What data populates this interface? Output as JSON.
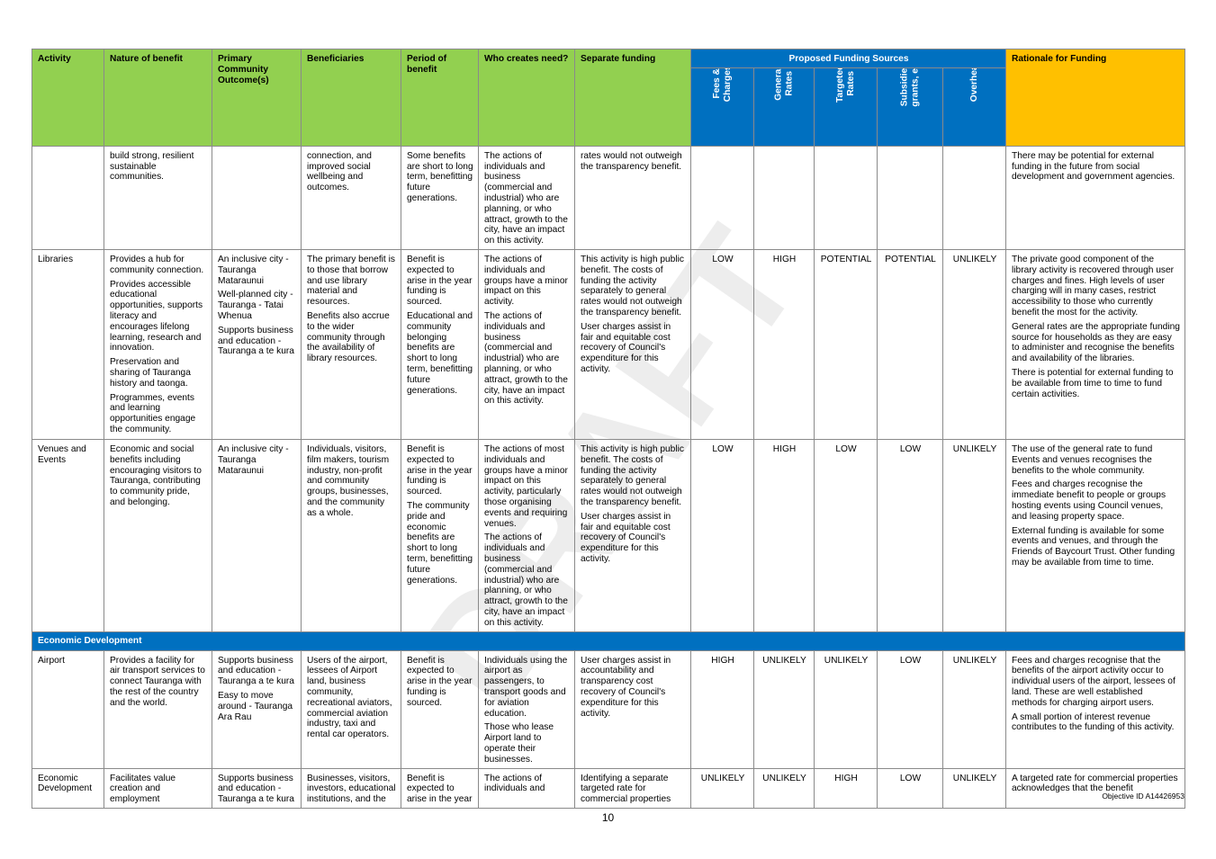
{
  "header": {
    "activity": "Activity",
    "nature": "Nature of benefit",
    "outcome": "Primary Community Outcome(s)",
    "beneficiaries": "Beneficiaries",
    "period": "Period of benefit",
    "who": "Who creates need?",
    "separate": "Separate funding",
    "proposed": "Proposed Funding Sources",
    "rationale": "Rationale for Funding",
    "sources": [
      "Fees &\nCharges",
      "General\nRates",
      "Targeted\nRates",
      "Subsidies,\ngrants, etc",
      "Overheads"
    ]
  },
  "rows": [
    {
      "activity": "",
      "nature": [
        "build strong, resilient sustainable communities."
      ],
      "outcome": [],
      "beneficiaries": [
        "connection, and improved social wellbeing and outcomes."
      ],
      "period": [
        "Some benefits are short to long term, benefitting future generations."
      ],
      "who": [
        "The actions of individuals and business (commercial and industrial) who are planning, or who attract, growth to the city, have an impact on this activity."
      ],
      "separate": [
        "rates would not outweigh the transparency benefit."
      ],
      "levels": [
        "",
        "",
        "",
        "",
        ""
      ],
      "rationale": [
        "There may be potential for external funding in the future from social development and government agencies."
      ]
    },
    {
      "activity": "Libraries",
      "nature": [
        "Provides a hub for community connection.",
        "Provides accessible educational opportunities, supports literacy and encourages lifelong learning, research and innovation.",
        "Preservation and sharing of Tauranga history and taonga.",
        "Programmes, events and learning opportunities engage the community."
      ],
      "outcome": [
        "An inclusive city - Tauranga Mataraunui",
        "Well-planned city - Tauranga - Tatai Whenua",
        "Supports business and education - Tauranga a te kura"
      ],
      "beneficiaries": [
        "The primary benefit is to those that borrow and use library material and resources.",
        "Benefits also accrue to the wider community through the availability of library resources."
      ],
      "period": [
        "Benefit is expected to arise in the year funding is sourced.",
        "Educational and community belonging benefits are short to long term, benefitting future generations."
      ],
      "who": [
        "The actions of individuals and groups have a minor impact on this activity.",
        "The actions of individuals and business (commercial and industrial) who are planning, or who attract, growth to the city, have an impact on this activity."
      ],
      "separate": [
        "This activity is high public benefit. The costs of funding the activity separately to general rates would not outweigh the transparency benefit.",
        "User charges assist in fair and equitable cost recovery of Council's expenditure for this activity."
      ],
      "levels": [
        "LOW",
        "HIGH",
        "POTENTIAL",
        "POTENTIAL",
        "UNLIKELY"
      ],
      "rationale": [
        "The private good component of the library activity is recovered through user charges and fines. High levels of user charging will in many cases, restrict accessibility to those who currently benefit the most for the activity.",
        "General rates are the appropriate funding source for households as they are easy to administer and recognise the benefits and availability of the libraries.",
        "There is potential for external funding to be available from time to time to fund certain activities."
      ]
    },
    {
      "activity": "Venues and Events",
      "nature": [
        "Economic and social benefits including encouraging visitors to Tauranga, contributing to community pride, and belonging."
      ],
      "outcome": [
        "An inclusive city - Tauranga Mataraunui"
      ],
      "beneficiaries": [
        "Individuals, visitors, film makers, tourism industry, non-profit and community groups, businesses, and the community as a whole."
      ],
      "period": [
        "Benefit is expected to arise in the year funding is sourced.",
        "The community pride and economic benefits are short to long term, benefitting future generations."
      ],
      "who": [
        "The actions of most individuals and groups have a minor impact on this activity, particularly those organising events and requiring venues.",
        "The actions of individuals and business (commercial and industrial) who are planning, or who attract, growth to the city, have an impact on this activity."
      ],
      "separate": [
        "This activity is high public benefit. The costs of funding the activity separately to general rates would not outweigh the transparency benefit.",
        "User charges assist in fair and equitable cost recovery of Council's expenditure for this activity."
      ],
      "levels": [
        "LOW",
        "HIGH",
        "LOW",
        "LOW",
        "UNLIKELY"
      ],
      "rationale": [
        "The use of the general rate to fund Events and venues recognises the benefits to the whole community.",
        "Fees and charges recognise the immediate benefit to people or groups hosting events using Council venues, and leasing property space.",
        "External funding is available for some events and venues, and through the Friends of Baycourt Trust. Other funding may be available from time to time."
      ]
    }
  ],
  "section": "Economic Development",
  "rows2": [
    {
      "activity": "Airport",
      "nature": [
        "Provides a facility for air transport services to connect Tauranga with the rest of the country and the world."
      ],
      "outcome": [
        "Supports business and education - Tauranga a te kura",
        "Easy to move around - Tauranga Ara Rau"
      ],
      "beneficiaries": [
        "Users of the airport, lessees of Airport land, business community, recreational aviators, commercial aviation industry, taxi and rental car operators."
      ],
      "period": [
        "Benefit is expected to arise in the year funding is sourced."
      ],
      "who": [
        "Individuals using the airport as passengers, to transport goods and for aviation education.",
        "Those who lease Airport land to operate their businesses."
      ],
      "separate": [
        "User charges assist in accountability and transparency cost recovery of Council's expenditure for this activity."
      ],
      "levels": [
        "HIGH",
        "UNLIKELY",
        "UNLIKELY",
        "LOW",
        "UNLIKELY"
      ],
      "rationale": [
        "Fees and charges recognise that the benefits of the airport activity occur to individual users of the airport, lessees of land. These are well established methods for charging airport users.",
        "A small portion of interest revenue contributes to the funding of this activity."
      ]
    },
    {
      "activity": "Economic Development",
      "nature": [
        "Facilitates value creation and employment"
      ],
      "outcome": [
        "Supports business and education - Tauranga a te kura"
      ],
      "beneficiaries": [
        "Businesses, visitors, investors, educational institutions, and the"
      ],
      "period": [
        "Benefit is expected to arise in the year"
      ],
      "who": [
        "The actions of individuals and"
      ],
      "separate": [
        "Identifying a separate targeted rate for commercial properties"
      ],
      "levels": [
        "UNLIKELY",
        "UNLIKELY",
        "HIGH",
        "LOW",
        "UNLIKELY"
      ],
      "rationale": [
        "A targeted rate for commercial properties acknowledges that the benefit"
      ]
    }
  ],
  "footer": {
    "objective": "Objective ID A14426953",
    "page": "10"
  },
  "watermark": "DRAFT"
}
